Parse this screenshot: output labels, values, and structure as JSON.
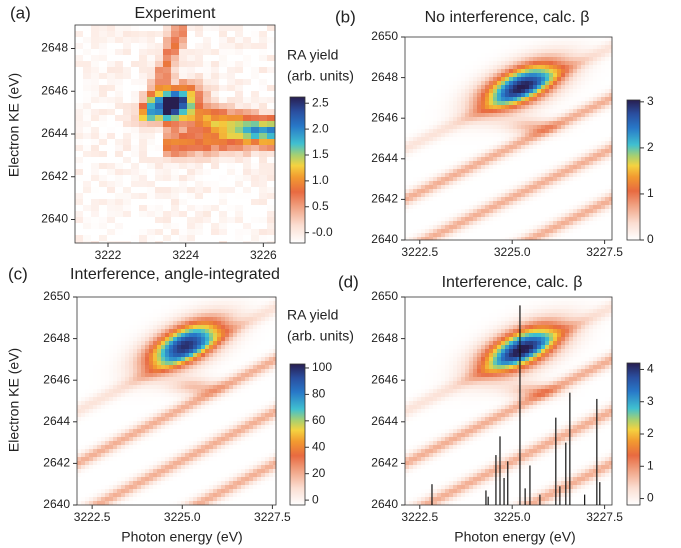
{
  "chart_data": [
    {
      "type": "heatmap",
      "panel": "(a)",
      "title": "Experiment",
      "ylabel": "Electron KE (eV)",
      "xlim": [
        3221.15,
        3226.3
      ],
      "xticks": [
        3222,
        3224,
        3226
      ],
      "ylim": [
        2638.9,
        2649.1
      ],
      "yticks": [
        2640,
        2642,
        2644,
        2646,
        2648
      ],
      "colorbar": {
        "label": [
          "RA yield",
          "(arb. units)"
        ],
        "lim": [
          -0.2,
          2.62
        ],
        "ticks": [
          {
            "value": 0,
            "label": "-0.0"
          },
          0.5,
          {
            "value": 1,
            "label": "1.0"
          },
          1.5,
          {
            "value": 2,
            "label": "2.0"
          },
          2.5
        ]
      }
    },
    {
      "type": "heatmap",
      "panel": "(b)",
      "title": "No interference, calc. β",
      "xlim": [
        3222.1,
        3227.7
      ],
      "xticks": [
        3222.5,
        {
          "value": 3225,
          "label": "3225.0"
        },
        3227.5
      ],
      "ylim": [
        2640,
        2650
      ],
      "yticks": [
        2640,
        2642,
        2644,
        2646,
        2648,
        2650
      ],
      "colorbar": {
        "lim": [
          0,
          3.04
        ],
        "ticks": [
          0,
          1,
          2,
          3
        ]
      }
    },
    {
      "type": "heatmap",
      "panel": "(c)",
      "title": "Interference, angle-integrated",
      "ylabel": "Electron KE (eV)",
      "xlabel": "Photon energy (eV)",
      "xlim": [
        3222.08,
        3227.6
      ],
      "xticks": [
        3222.5,
        {
          "value": 3225,
          "label": "3225.0"
        },
        3227.5
      ],
      "ylim": [
        2640,
        2650
      ],
      "yticks": [
        2640,
        2642,
        2644,
        2646,
        2648,
        2650
      ],
      "colorbar": {
        "label": [
          "RA yield",
          "(arb. units)"
        ],
        "lim": [
          -3.7,
          103
        ],
        "ticks": [
          0,
          20,
          40,
          60,
          80,
          100
        ]
      }
    },
    {
      "type": "heatmap",
      "panel": "(d)",
      "title": "Interference,  calc. β",
      "xlabel": "Photon energy (eV)",
      "xlim": [
        3222.1,
        3227.7
      ],
      "xticks": [
        3222.5,
        {
          "value": 3225,
          "label": "3225.0"
        },
        3227.5
      ],
      "ylim": [
        2640,
        2650
      ],
      "yticks": [
        2640,
        2642,
        2644,
        2646,
        2648,
        2650
      ],
      "colorbar": {
        "lim": [
          -0.2,
          4.2
        ],
        "ticks": [
          0,
          1,
          2,
          3,
          4
        ]
      },
      "sticks": {
        "x": [
          3222.83,
          3224.29,
          3224.35,
          3224.56,
          3224.67,
          3224.78,
          3224.88,
          3225.21,
          3225.35,
          3225.48,
          3225.75,
          3226.18,
          3226.29,
          3226.45,
          3226.56,
          3226.96,
          3227.29,
          3227.37
        ],
        "y": [
          2641.0,
          2640.7,
          2640.4,
          2642.4,
          2643.3,
          2641.3,
          2642.1,
          2649.6,
          2640.8,
          2641.9,
          2640.5,
          2644.2,
          2640.9,
          2643.0,
          2645.4,
          2640.5,
          2645.1,
          2641.1
        ]
      }
    }
  ]
}
